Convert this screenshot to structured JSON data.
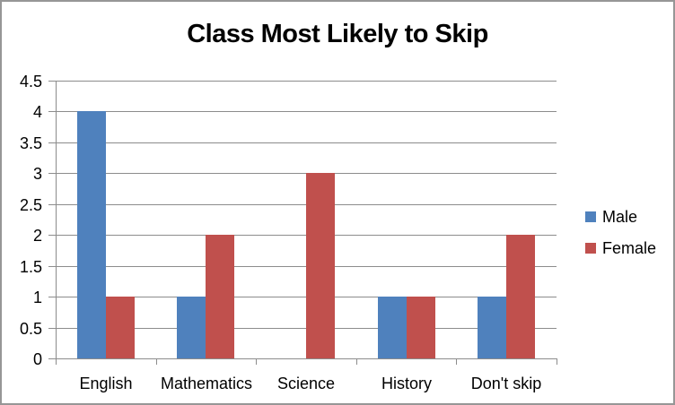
{
  "chart_data": {
    "type": "bar",
    "title": "Class Most Likely to Skip",
    "categories": [
      "English",
      "Mathematics",
      "Science",
      "History",
      "Don't skip"
    ],
    "series": [
      {
        "name": "Male",
        "color": "#4F81BD",
        "values": [
          4,
          1,
          0,
          1,
          1
        ]
      },
      {
        "name": "Female",
        "color": "#C0504D",
        "values": [
          1,
          2,
          3,
          1,
          2
        ]
      }
    ],
    "xlabel": "",
    "ylabel": "",
    "ylim": [
      0,
      4.5
    ],
    "ytick_step": 0.5,
    "grid": true,
    "legend_position": "right",
    "gridline_color": "#8C8C8C",
    "axis_color": "#8C8C8C",
    "frame_border_color": "#969696",
    "text_color": "#000000"
  }
}
